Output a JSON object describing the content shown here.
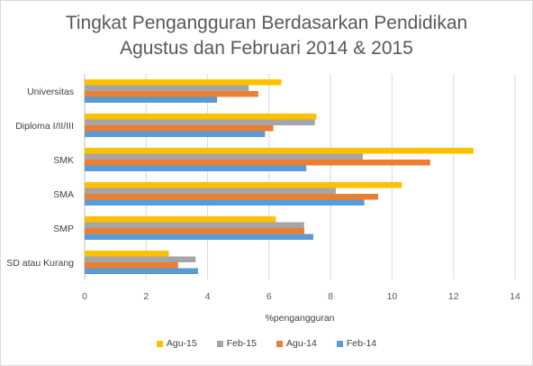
{
  "chart_data": {
    "type": "bar",
    "orientation": "horizontal",
    "title_lines": [
      "Tingkat Pengangguran Berdasarkan Pendidikan",
      "Agustus dan Februari 2014 & 2015"
    ],
    "xlabel": "%pengangguran",
    "ylabel": "",
    "xlim": [
      0,
      14
    ],
    "xticks": [
      "0",
      "2",
      "4",
      "6",
      "8",
      "10",
      "12",
      "14"
    ],
    "grid": true,
    "legend_position": "bottom",
    "categories": [
      "Universitas",
      "Diploma I/II/III",
      "SMK",
      "SMA",
      "SMP",
      "SD atau Kurang"
    ],
    "series": [
      {
        "name": "Agu-15",
        "color": "#FFC000",
        "values": [
          6.4,
          7.54,
          12.65,
          10.32,
          6.22,
          2.74
        ]
      },
      {
        "name": "Feb-15",
        "color": "#A5A5A5",
        "values": [
          5.34,
          7.49,
          9.05,
          8.17,
          7.14,
          3.61
        ]
      },
      {
        "name": "Agu-14",
        "color": "#ED7D31",
        "values": [
          5.65,
          6.14,
          11.24,
          9.55,
          7.15,
          3.04
        ]
      },
      {
        "name": "Feb-14",
        "color": "#5B9BD5",
        "values": [
          4.31,
          5.87,
          7.21,
          9.1,
          7.44,
          3.69
        ]
      }
    ]
  }
}
